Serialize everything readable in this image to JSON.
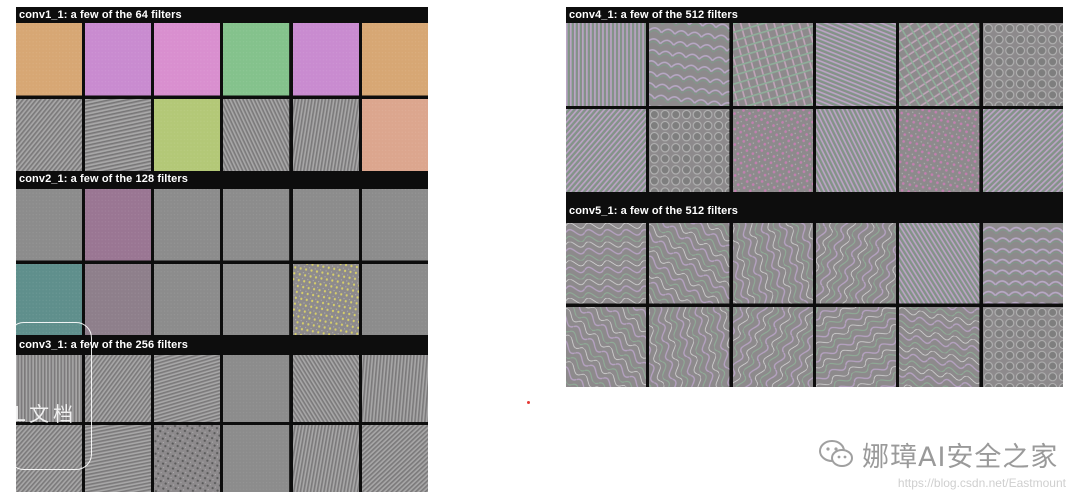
{
  "left_panel": {
    "sections": [
      {
        "title": "conv1_1: a few of the 64 filters",
        "tiles": [
          "solid-orange",
          "solid-magenta",
          "solid-pink",
          "solid-green",
          "solid-magenta",
          "solid-orange",
          "stripe-grey",
          "stripe-grey",
          "solid-yellowgreen",
          "stripe-grey",
          "stripe-grey",
          "solid-salmon"
        ]
      },
      {
        "title": "conv2_1: a few of the 128 filters",
        "tiles": [
          "solid-grey",
          "solid-mauve",
          "solid-grey",
          "solid-grey",
          "solid-grey",
          "solid-grey",
          "solid-teal",
          "solid-mauvegrey",
          "solid-grey",
          "solid-grey",
          "texture-yellowdots",
          "solid-grey"
        ]
      },
      {
        "title": "conv3_1: a few of the 256 filters",
        "tiles": [
          "stripe-grey",
          "stripe-grey",
          "stripe-grey",
          "solid-grey",
          "stripe-grey",
          "stripe-grey",
          "stripe-grey",
          "stripe-grey",
          "texture-dots",
          "solid-grey",
          "stripe-grey",
          "stripe-grey"
        ]
      }
    ]
  },
  "right_panel": {
    "sections": [
      {
        "title": "conv4_1: a few of the 512 filters",
        "tiles": [
          "stripe-color",
          "waves-color",
          "grid-color",
          "stripe-color",
          "grid-color",
          "cells-grey",
          "stripe-color",
          "cells-grey",
          "dots-color",
          "stripe-color",
          "dots-color",
          "stripe-color"
        ]
      },
      {
        "title": "conv5_1: a few of the 512 filters",
        "tiles": [
          "swirl-color",
          "swirl-color",
          "swirl-color",
          "swirl-color",
          "stripe-color",
          "waves-color",
          "swirl-color",
          "swirl-color",
          "swirl-color",
          "swirl-color",
          "swirl-color",
          "cells-grey"
        ]
      }
    ]
  },
  "annotation": {
    "text": "L文档"
  },
  "watermark": {
    "name": "娜璋AI安全之家",
    "url": "https://blog.csdn.net/Eastmount",
    "icon": "wechat-icon"
  }
}
